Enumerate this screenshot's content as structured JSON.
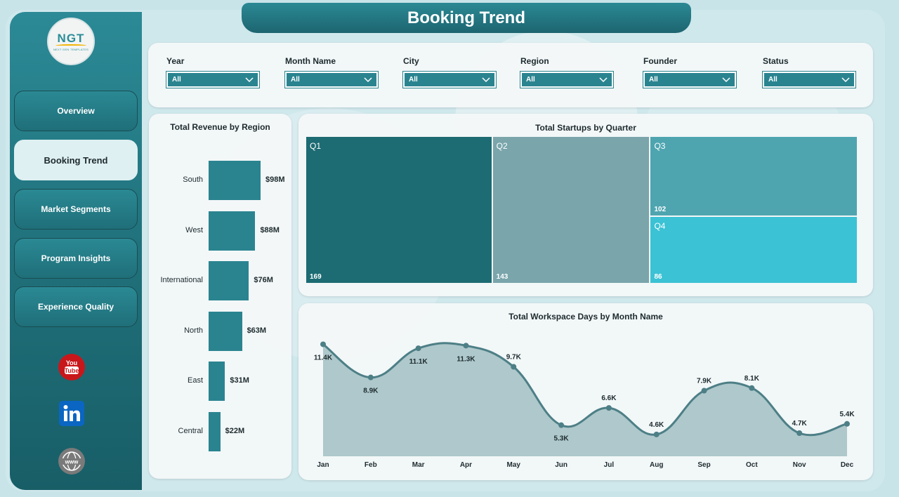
{
  "app": {
    "title": "Booking Trend",
    "logo": {
      "text": "NGT",
      "subtext": "NEXT GEN TEMPLATES"
    }
  },
  "sidebar": {
    "items": [
      {
        "label": "Overview",
        "active": false
      },
      {
        "label": "Booking Trend",
        "active": true
      },
      {
        "label": "Market Segments",
        "active": false
      },
      {
        "label": "Program Insights",
        "active": false
      },
      {
        "label": "Experience Quality",
        "active": false
      }
    ],
    "social": [
      {
        "icon": "youtube-icon",
        "label": "You Tube"
      },
      {
        "icon": "linkedin-icon",
        "label": "in"
      },
      {
        "icon": "website-icon",
        "label": "www"
      }
    ]
  },
  "filters": [
    {
      "label": "Year",
      "value": "All"
    },
    {
      "label": "Month Name",
      "value": "All"
    },
    {
      "label": "City",
      "value": "All"
    },
    {
      "label": "Region",
      "value": "All"
    },
    {
      "label": "Founder",
      "value": "All"
    },
    {
      "label": "Status",
      "value": "All"
    }
  ],
  "colors": {
    "accent": "#2a8490",
    "q1": "#1d6b73",
    "q2": "#79a5ab",
    "q3": "#4ea5b0",
    "q4": "#3bc2d4",
    "line": "#4d7f86",
    "area": "#aec8cb"
  },
  "chart_data": [
    {
      "type": "bar",
      "orientation": "horizontal",
      "title": "Total Revenue by Region",
      "categories": [
        "South",
        "West",
        "International",
        "North",
        "East",
        "Central"
      ],
      "values": [
        98,
        88,
        76,
        63,
        31,
        22
      ],
      "data_labels": [
        "$98M",
        "$88M",
        "$76M",
        "$63M",
        "$31M",
        "$22M"
      ],
      "unit": "$M"
    },
    {
      "type": "treemap",
      "title": "Total Startups by Quarter",
      "categories": [
        "Q1",
        "Q2",
        "Q3",
        "Q4"
      ],
      "values": [
        169,
        143,
        102,
        86
      ]
    },
    {
      "type": "area",
      "title": "Total Workspace Days by Month Name",
      "categories": [
        "Jan",
        "Feb",
        "Mar",
        "Apr",
        "May",
        "Jun",
        "Jul",
        "Aug",
        "Sep",
        "Oct",
        "Nov",
        "Dec"
      ],
      "values": [
        11400,
        8900,
        11100,
        11300,
        9700,
        5300,
        6600,
        4600,
        7900,
        8100,
        4700,
        5400
      ],
      "data_labels": [
        "11.4K",
        "8.9K",
        "11.1K",
        "11.3K",
        "9.7K",
        "5.3K",
        "6.6K",
        "4.6K",
        "7.9K",
        "8.1K",
        "4.7K",
        "5.4K"
      ],
      "grid": false,
      "legend": "none"
    }
  ]
}
